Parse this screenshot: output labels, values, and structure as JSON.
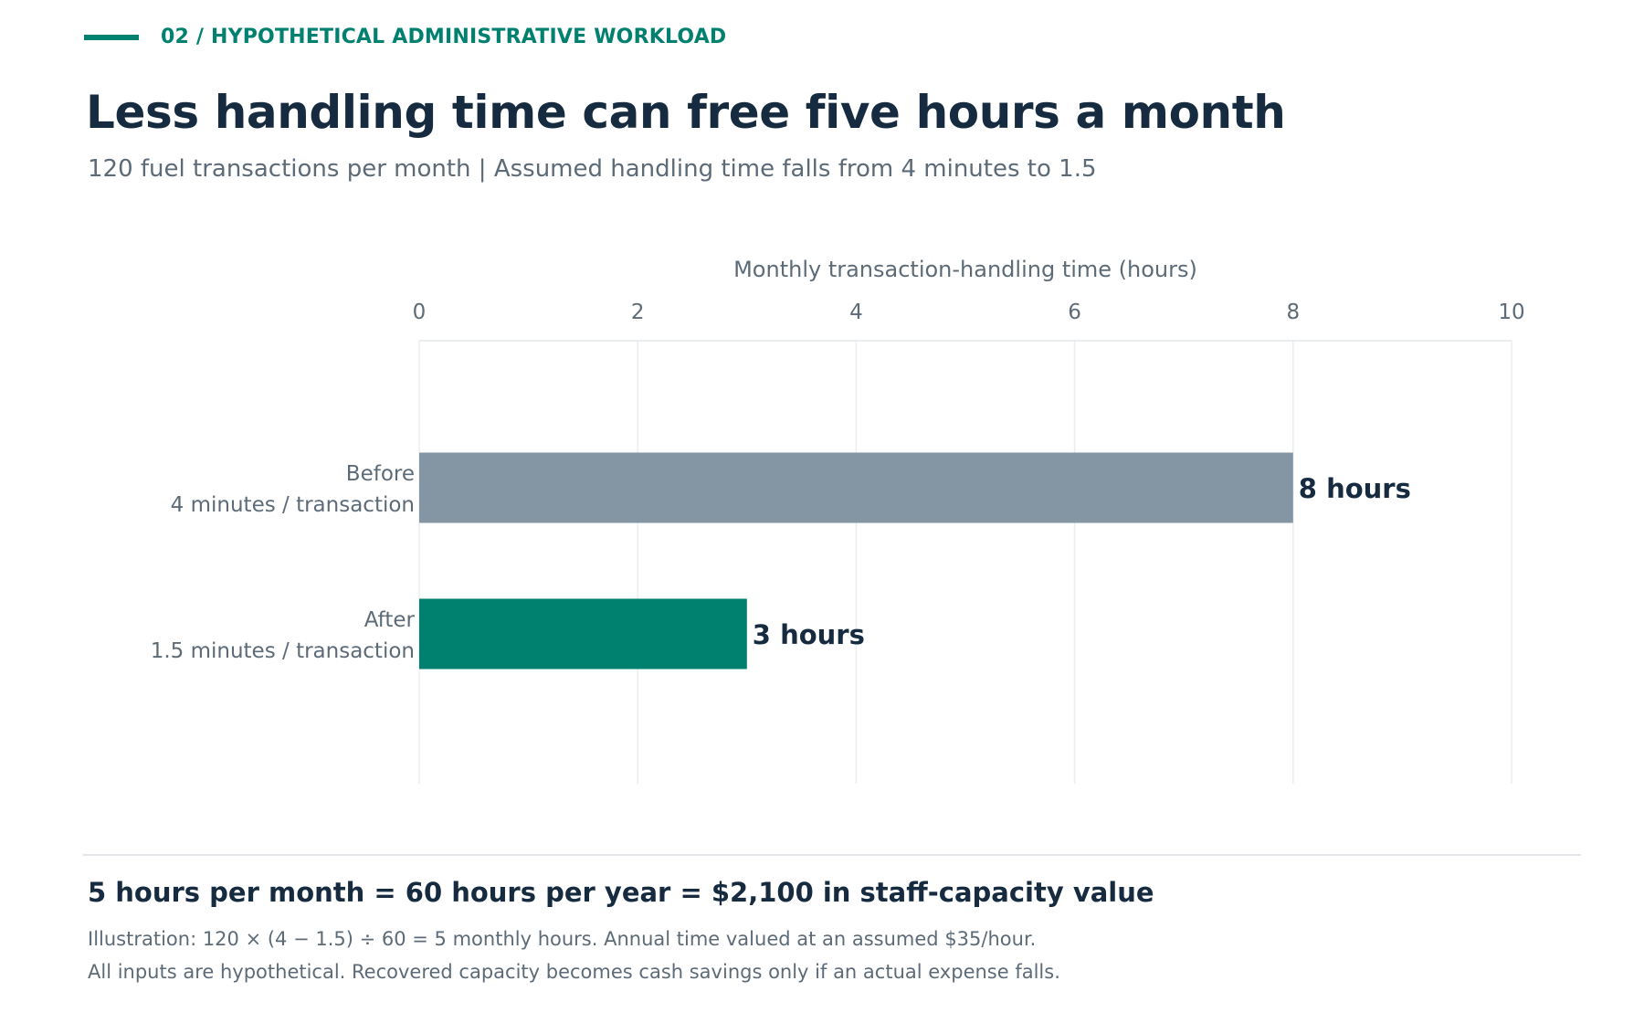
{
  "header": {
    "eyebrow": "02 / HYPOTHETICAL ADMINISTRATIVE WORKLOAD",
    "title": "Less handling time can free five hours a month",
    "subtitle": "120 fuel transactions per month  |  Assumed handling time falls from 4 minutes to 1.5"
  },
  "colors": {
    "accent": "#00806f",
    "before_bar": "#8496a4",
    "after_bar": "#00806f",
    "text_dark": "#162b40",
    "text_muted": "#5d6b78"
  },
  "chart_data": {
    "type": "bar",
    "orientation": "horizontal",
    "xlabel": "Monthly transaction-handling time (hours)",
    "xlim": [
      0,
      10
    ],
    "xticks": [
      "0",
      "2",
      "4",
      "6",
      "8",
      "10"
    ],
    "grid": true,
    "categories": [
      {
        "name": "Before",
        "detail": "4 minutes / transaction"
      },
      {
        "name": "After",
        "detail": "1.5 minutes / transaction"
      }
    ],
    "values": [
      8,
      3
    ],
    "data_labels": [
      "8 hours",
      "3 hours"
    ]
  },
  "footer": {
    "summary": "5 hours per month = 60 hours per year = $2,100 in staff-capacity value",
    "note1": "Illustration: 120 × (4 − 1.5) ÷ 60 = 5 monthly hours. Annual time valued at an assumed $35/hour.",
    "note2": "All inputs are hypothetical. Recovered capacity becomes cash savings only if an actual expense falls."
  }
}
